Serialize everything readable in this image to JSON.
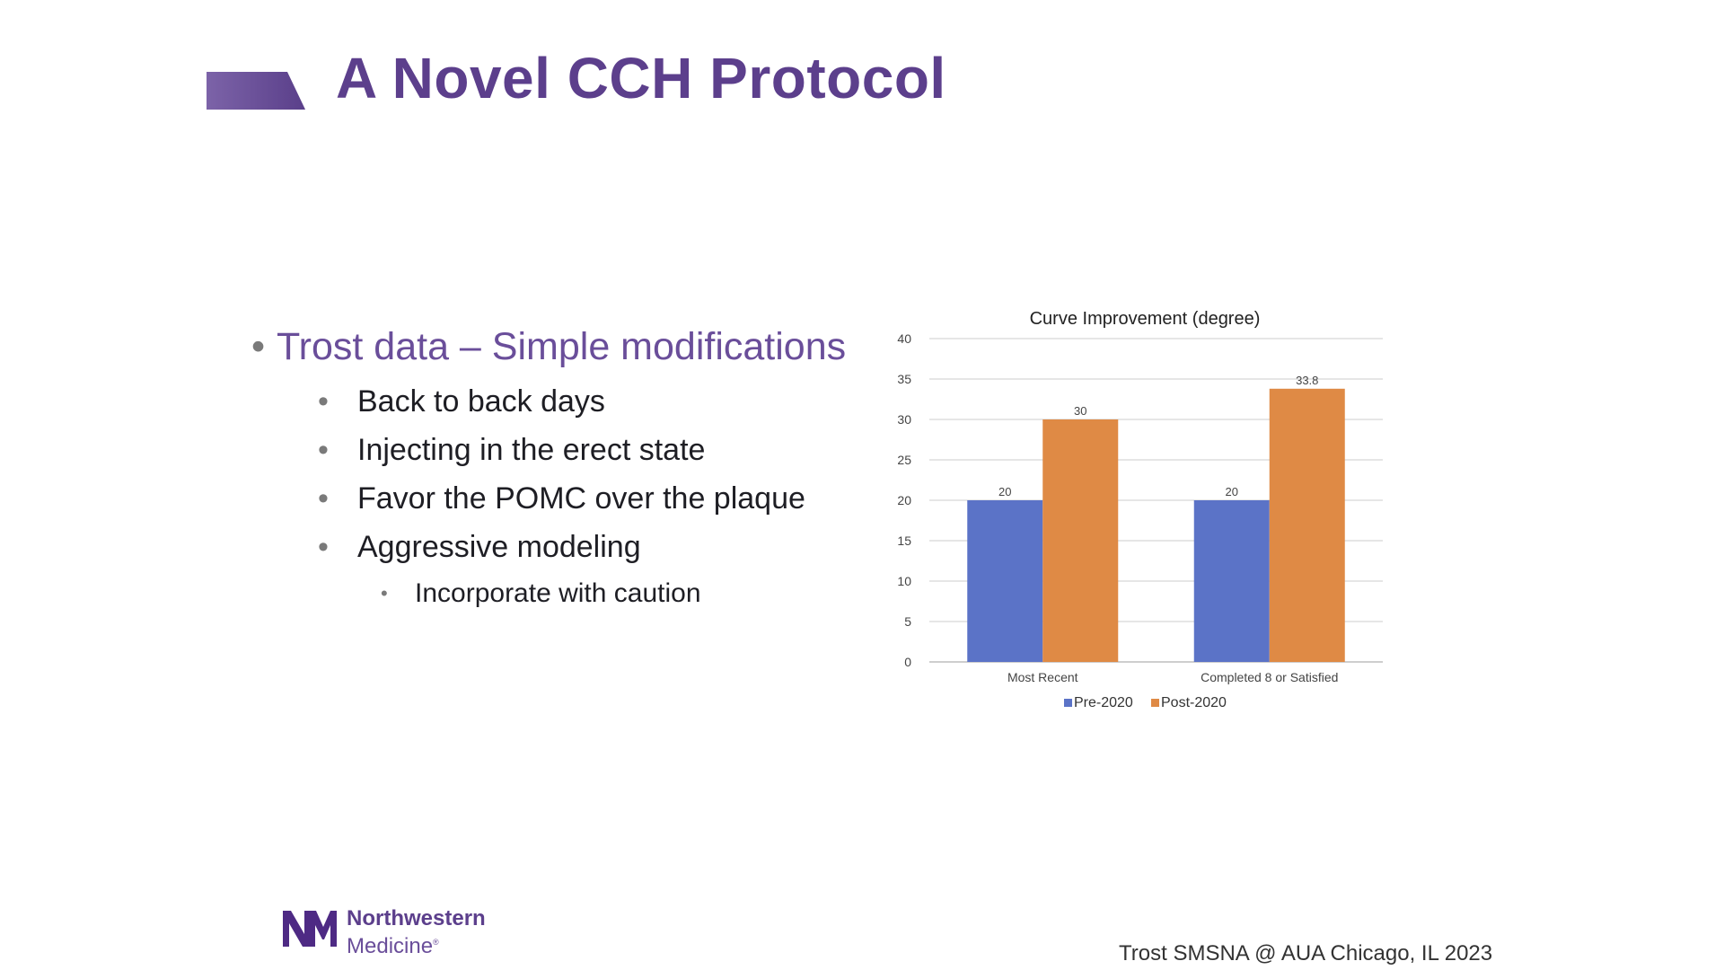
{
  "slide": {
    "title": "A Novel CCH Protocol",
    "accent_color": "#5c3f8c",
    "footer": "Trost SMSNA @ AUA Chicago, IL 2023"
  },
  "bullets": [
    {
      "level": 1,
      "text": "Trost data – Simple modifications"
    },
    {
      "level": 2,
      "text": "Back to back days"
    },
    {
      "level": 2,
      "text": "Injecting in the erect state"
    },
    {
      "level": 2,
      "text": "Favor the POMC over the plaque"
    },
    {
      "level": 2,
      "text": "Aggressive modeling"
    },
    {
      "level": 3,
      "text": "Incorporate with caution"
    }
  ],
  "logo": {
    "line1": "Northwestern",
    "line2": "Medicine",
    "mark": "NM"
  },
  "chart_data": {
    "type": "bar",
    "title": "Curve Improvement (degree)",
    "categories": [
      "Most Recent",
      "Completed 8 or Satisfied"
    ],
    "series": [
      {
        "name": "Pre-2020",
        "values": [
          20,
          20
        ],
        "color": "#5b73c7"
      },
      {
        "name": "Post-2020",
        "values": [
          30,
          33.8
        ],
        "color": "#df8a45"
      }
    ],
    "ylim": [
      0,
      40
    ],
    "yticks": [
      0,
      5,
      10,
      15,
      20,
      25,
      30,
      35,
      40
    ],
    "grid": true,
    "legend": "bottom"
  }
}
